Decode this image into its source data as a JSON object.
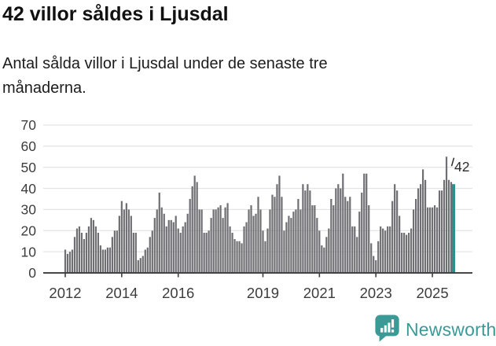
{
  "title": "42 villor såldes i Ljusdal",
  "subtitle": "Antal sålda villor i Ljusdal under de senaste tre månaderna.",
  "branding": {
    "logo_text": "Newsworthy",
    "logo_color": "#3a9a96",
    "logo_icon": "newsworthy-chart-bubble-icon"
  },
  "colors": {
    "bar": "#6e6e73",
    "highlight": "#2e8f8f",
    "grid": "#e3e3e3",
    "axis": "#3d3d3d",
    "tick_label": "#3d3d3d",
    "annotation_text": "#2b2b2b"
  },
  "chart_data": {
    "type": "bar",
    "title": "42 villor såldes i Ljusdal",
    "subtitle": "Antal sålda villor i Ljusdal under de senaste tre månaderna.",
    "xlabel": "",
    "ylabel": "",
    "x_interval": "month",
    "x_start": "2012-01",
    "x_end": "2025-10",
    "ylim": [
      0,
      70
    ],
    "yticks": [
      0,
      10,
      20,
      30,
      40,
      50,
      60,
      70
    ],
    "xtick_years": [
      2012,
      2014,
      2016,
      2019,
      2021,
      2023,
      2025
    ],
    "grid": "horizontal",
    "legend": "none",
    "highlight_last": true,
    "annotation": {
      "label": "42",
      "applies_to": "last-bar"
    },
    "values": [
      11,
      9,
      10,
      11,
      17,
      21,
      22,
      19,
      16,
      19,
      22,
      26,
      25,
      22,
      19,
      13,
      11,
      11,
      12,
      12,
      17,
      20,
      20,
      27,
      34,
      30,
      33,
      30,
      27,
      19,
      19,
      6,
      7,
      8,
      11,
      12,
      17,
      20,
      26,
      30,
      38,
      31,
      28,
      22,
      25,
      25,
      24,
      27,
      21,
      19,
      22,
      24,
      28,
      35,
      41,
      46,
      43,
      30,
      30,
      19,
      19,
      20,
      26,
      30,
      30,
      31,
      32,
      26,
      31,
      33,
      22,
      19,
      16,
      15,
      15,
      14,
      22,
      24,
      30,
      32,
      27,
      28,
      36,
      30,
      20,
      15,
      21,
      30,
      37,
      36,
      42,
      46,
      36,
      20,
      24,
      27,
      26,
      29,
      30,
      35,
      30,
      42,
      39,
      42,
      39,
      32,
      32,
      26,
      20,
      13,
      12,
      17,
      21,
      35,
      32,
      40,
      42,
      40,
      47,
      36,
      34,
      36,
      22,
      22,
      17,
      29,
      38,
      47,
      47,
      32,
      14,
      8,
      6,
      15,
      22,
      21,
      20,
      22,
      22,
      34,
      42,
      39,
      27,
      19,
      19,
      18,
      19,
      21,
      30,
      35,
      40,
      42,
      49,
      44,
      31,
      31,
      31,
      32,
      31,
      39,
      39,
      44,
      55,
      44,
      43,
      42
    ]
  }
}
